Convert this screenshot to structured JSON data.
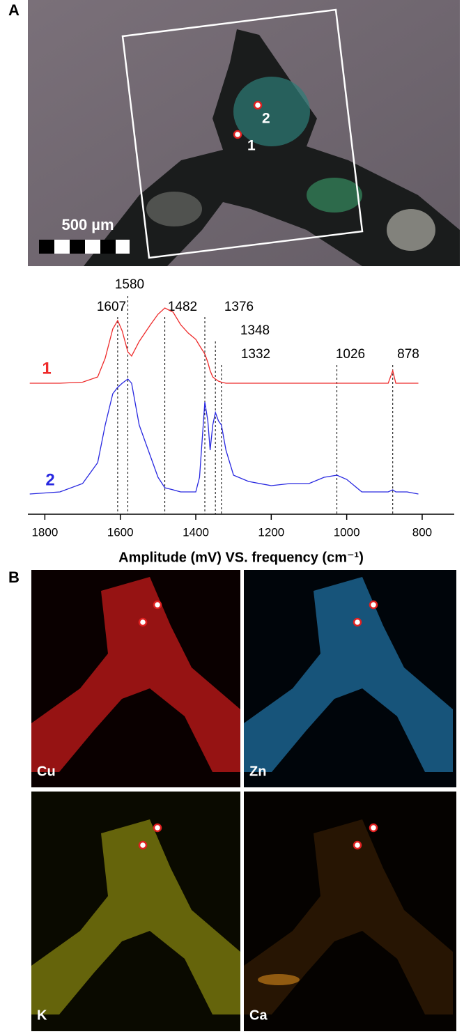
{
  "panel_a": {
    "label": "A",
    "scale_bar": "500 µm",
    "points": [
      "1",
      "2"
    ]
  },
  "chart_data": {
    "type": "line",
    "x_label": "Amplitude (mV) VS. frequency (cm⁻¹)",
    "x": [
      1840,
      1760,
      1700,
      1660,
      1640,
      1620,
      1607,
      1595,
      1580,
      1570,
      1550,
      1520,
      1500,
      1482,
      1460,
      1440,
      1420,
      1400,
      1390,
      1376,
      1368,
      1362,
      1355,
      1348,
      1340,
      1332,
      1320,
      1300,
      1260,
      1200,
      1150,
      1100,
      1060,
      1026,
      1000,
      960,
      920,
      890,
      878,
      870,
      840,
      810
    ],
    "series": [
      {
        "name": "1",
        "color": "#ee2a2a",
        "values": [
          60,
          60,
          60.5,
          63,
          72,
          86,
          90,
          85,
          75,
          73,
          80,
          88,
          93,
          96,
          94,
          88,
          84,
          81,
          78,
          74,
          70,
          66,
          63,
          62,
          61,
          60.5,
          60,
          60,
          60,
          60,
          60,
          60,
          60,
          60,
          60,
          60,
          60,
          60,
          66,
          60,
          60,
          60
        ]
      },
      {
        "name": "2",
        "color": "#2727e0",
        "values": [
          7,
          8,
          12,
          22,
          40,
          55,
          58,
          60,
          62,
          60,
          40,
          25,
          15,
          10,
          9,
          8,
          8,
          8,
          15,
          51,
          42,
          28,
          40,
          46,
          42,
          40,
          28,
          16,
          13,
          11,
          12,
          12,
          15,
          16,
          14,
          8,
          8,
          8,
          9,
          8,
          8,
          7
        ]
      }
    ],
    "peaks": [
      1607,
      1580,
      1482,
      1376,
      1348,
      1332,
      1026,
      878
    ],
    "xlim": [
      1845,
      715
    ],
    "ylim": [
      0,
      100
    ],
    "xticks": [
      1800,
      1600,
      1400,
      1200,
      1000,
      800
    ]
  },
  "panel_b": {
    "label": "B",
    "maps": [
      "Cu",
      "Zn",
      "K",
      "Ca"
    ]
  }
}
